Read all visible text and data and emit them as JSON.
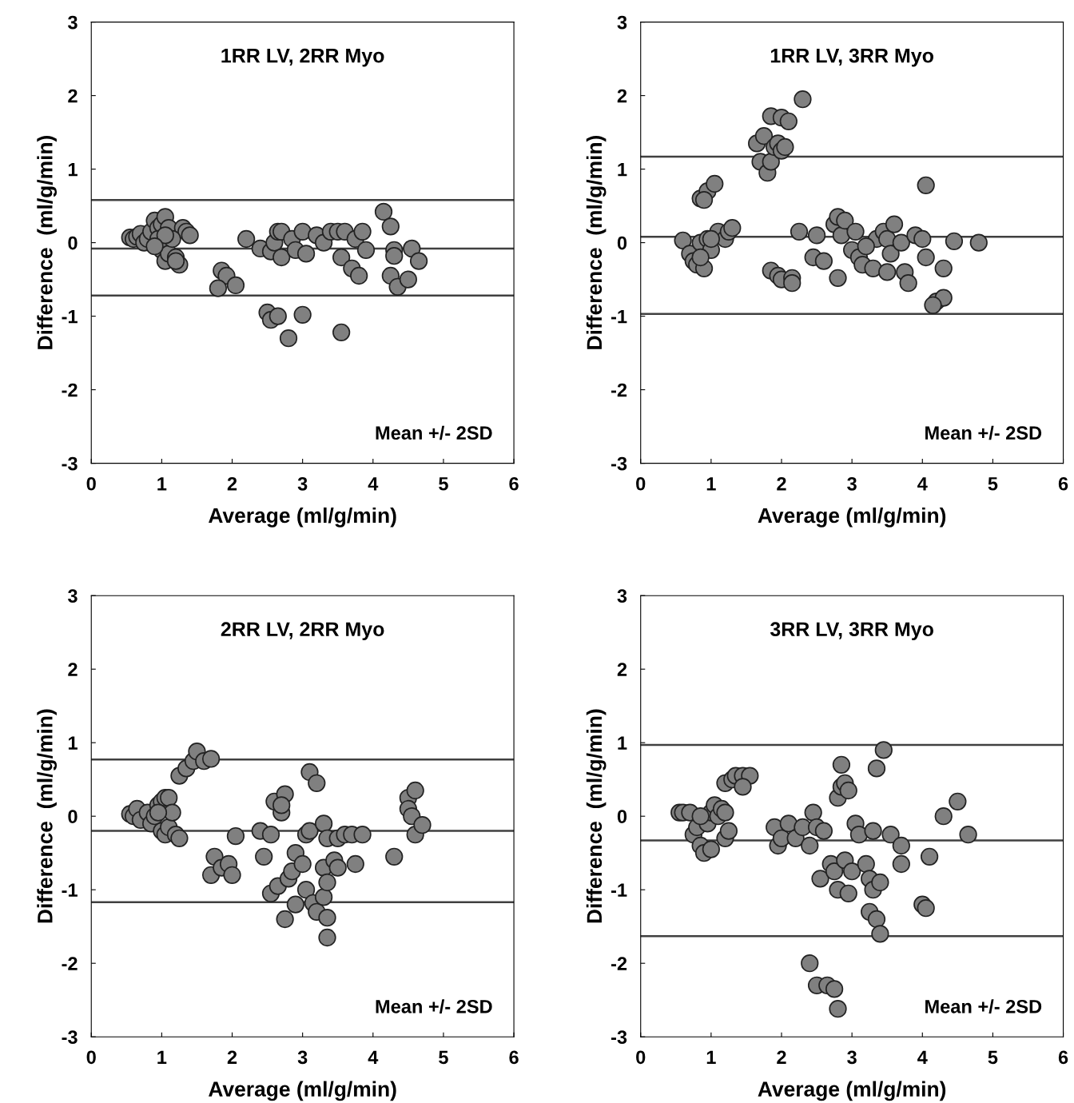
{
  "chart_data": [
    {
      "type": "scatter",
      "title": "1RR LV, 2RR Myo",
      "xlabel": "Average (ml/g/min)",
      "ylabel": "Difference  (ml/g/min)",
      "xlim": [
        0,
        6
      ],
      "xticks": [
        0,
        1,
        2,
        3,
        4,
        5,
        6
      ],
      "ylim": [
        -3,
        3
      ],
      "yticks": [
        -3,
        -2,
        -1,
        0,
        1,
        2,
        3
      ],
      "marker": "circle",
      "grid": false,
      "legend": false,
      "ref_lines": [
        {
          "axis": "y",
          "value": 0.58,
          "color": "#404040"
        },
        {
          "axis": "y",
          "value": -0.08,
          "color": "#404040"
        },
        {
          "axis": "y",
          "value": -0.72,
          "color": "#404040"
        }
      ],
      "annotations": [
        "Mean +/- 2SD"
      ],
      "series": [
        {
          "color": "#808080",
          "x": [
            0.55,
            0.6,
            0.65,
            0.7,
            0.75,
            0.8,
            0.85,
            0.9,
            0.95,
            1.0,
            1.05,
            1.1,
            0.95,
            1.0,
            1.05,
            1.1,
            1.2,
            1.25,
            1.3,
            1.35,
            1.4,
            1.15,
            1.05,
            0.9,
            1.2,
            1.85,
            1.92,
            1.8,
            2.05,
            2.2,
            2.4,
            2.55,
            2.6,
            2.65,
            2.7,
            2.7,
            2.5,
            2.55,
            2.65,
            2.8,
            3.0,
            2.85,
            2.9,
            3.0,
            3.05,
            3.2,
            3.3,
            3.4,
            3.5,
            3.6,
            3.55,
            3.7,
            3.8,
            3.75,
            3.85,
            3.9,
            3.55,
            4.15,
            4.25,
            4.3,
            4.3,
            4.25,
            4.35,
            4.5,
            4.55,
            4.65
          ],
          "values": [
            0.07,
            0.05,
            0.08,
            0.12,
            0.0,
            0.05,
            0.15,
            0.3,
            0.2,
            0.25,
            0.35,
            0.2,
            0.05,
            -0.1,
            -0.25,
            -0.15,
            -0.2,
            -0.3,
            0.2,
            0.15,
            0.1,
            0.05,
            0.1,
            -0.05,
            -0.25,
            -0.38,
            -0.45,
            -0.62,
            -0.58,
            0.05,
            -0.08,
            -0.12,
            0.0,
            0.15,
            0.15,
            -0.2,
            -0.95,
            -1.05,
            -1.0,
            -1.3,
            -0.98,
            0.05,
            -0.1,
            0.15,
            -0.15,
            0.1,
            0.0,
            0.15,
            0.15,
            0.15,
            -0.2,
            -0.35,
            -0.45,
            0.05,
            0.15,
            -0.1,
            -1.22,
            0.42,
            0.22,
            -0.1,
            -0.18,
            -0.45,
            -0.6,
            -0.5,
            -0.08,
            -0.25
          ]
        }
      ]
    },
    {
      "type": "scatter",
      "title": "1RR LV, 3RR Myo",
      "xlabel": "Average (ml/g/min)",
      "ylabel": "Difference  (ml/g/min)",
      "xlim": [
        0,
        6
      ],
      "xticks": [
        0,
        1,
        2,
        3,
        4,
        5,
        6
      ],
      "ylim": [
        -3,
        3
      ],
      "yticks": [
        -3,
        -2,
        -1,
        0,
        1,
        2,
        3
      ],
      "marker": "circle",
      "grid": false,
      "legend": false,
      "ref_lines": [
        {
          "axis": "y",
          "value": 1.17,
          "color": "#404040"
        },
        {
          "axis": "y",
          "value": 0.08,
          "color": "#404040"
        },
        {
          "axis": "y",
          "value": -0.97,
          "color": "#404040"
        }
      ],
      "annotations": [
        "Mean +/- 2SD"
      ],
      "series": [
        {
          "color": "#808080",
          "x": [
            0.6,
            0.7,
            0.75,
            0.8,
            0.85,
            0.9,
            0.95,
            1.0,
            1.1,
            1.2,
            1.25,
            1.3,
            0.85,
            1.0,
            0.85,
            0.95,
            1.05,
            0.9,
            1.65,
            1.75,
            1.7,
            1.8,
            1.85,
            1.9,
            1.95,
            2.0,
            2.05,
            1.85,
            2.0,
            2.1,
            2.3,
            1.85,
            1.95,
            2.0,
            2.15,
            2.15,
            2.25,
            2.5,
            2.45,
            2.6,
            2.75,
            2.8,
            2.85,
            2.9,
            2.8,
            3.0,
            3.05,
            3.1,
            3.15,
            3.3,
            3.35,
            3.45,
            3.5,
            3.55,
            3.5,
            3.7,
            3.75,
            3.8,
            3.9,
            4.0,
            4.05,
            4.3,
            4.2,
            4.3,
            4.15,
            4.05,
            4.45,
            4.8,
            3.2,
            3.6
          ],
          "values": [
            0.03,
            -0.15,
            -0.25,
            -0.3,
            0.0,
            -0.35,
            0.05,
            -0.1,
            0.15,
            0.05,
            0.15,
            0.2,
            -0.2,
            0.05,
            0.6,
            0.7,
            0.8,
            0.58,
            1.35,
            1.45,
            1.1,
            0.95,
            1.1,
            1.3,
            1.35,
            1.25,
            1.3,
            1.72,
            1.7,
            1.65,
            1.95,
            -0.38,
            -0.45,
            -0.5,
            -0.48,
            -0.55,
            0.15,
            0.1,
            -0.2,
            -0.25,
            0.25,
            0.35,
            0.1,
            0.3,
            -0.48,
            -0.1,
            0.15,
            -0.2,
            -0.3,
            -0.35,
            0.05,
            0.15,
            0.05,
            -0.15,
            -0.4,
            0.0,
            -0.4,
            -0.55,
            0.1,
            0.05,
            -0.2,
            -0.35,
            -0.8,
            -0.75,
            -0.85,
            0.78,
            0.02,
            0.0,
            -0.05,
            0.25
          ]
        }
      ]
    },
    {
      "type": "scatter",
      "title": "2RR LV, 2RR Myo",
      "xlabel": "Average (ml/g/min)",
      "ylabel": "Difference  (ml/g/min)",
      "xlim": [
        0,
        6
      ],
      "xticks": [
        0,
        1,
        2,
        3,
        4,
        5,
        6
      ],
      "ylim": [
        -3,
        3
      ],
      "yticks": [
        -3,
        -2,
        -1,
        0,
        1,
        2,
        3
      ],
      "marker": "circle",
      "grid": false,
      "legend": false,
      "ref_lines": [
        {
          "axis": "y",
          "value": 0.77,
          "color": "#404040"
        },
        {
          "axis": "y",
          "value": -0.2,
          "color": "#404040"
        },
        {
          "axis": "y",
          "value": -1.17,
          "color": "#404040"
        }
      ],
      "annotations": [
        "Mean +/- 2SD"
      ],
      "series": [
        {
          "color": "#808080",
          "x": [
            0.55,
            0.6,
            0.65,
            0.7,
            0.8,
            0.85,
            0.9,
            0.95,
            1.0,
            1.05,
            1.1,
            1.0,
            1.05,
            1.1,
            1.15,
            1.2,
            1.25,
            0.95,
            1.25,
            1.35,
            1.45,
            1.5,
            1.6,
            1.7,
            1.75,
            1.7,
            1.85,
            1.95,
            2.0,
            2.05,
            2.4,
            2.55,
            2.6,
            2.7,
            2.75,
            2.7,
            2.45,
            2.55,
            2.65,
            2.75,
            2.8,
            2.85,
            2.9,
            2.9,
            3.0,
            3.05,
            3.1,
            3.1,
            3.2,
            3.05,
            3.15,
            3.2,
            3.3,
            3.35,
            3.35,
            3.3,
            3.35,
            3.3,
            3.35,
            3.45,
            3.5,
            3.5,
            3.6,
            3.7,
            3.75,
            3.85,
            4.3,
            4.5,
            4.5,
            4.55,
            4.6,
            4.6,
            4.7
          ],
          "values": [
            0.03,
            0.0,
            0.1,
            -0.05,
            0.05,
            -0.1,
            0.0,
            0.15,
            0.2,
            0.25,
            0.25,
            -0.2,
            -0.25,
            -0.15,
            0.05,
            -0.25,
            -0.3,
            0.05,
            0.55,
            0.65,
            0.75,
            0.88,
            0.75,
            0.78,
            -0.55,
            -0.8,
            -0.7,
            -0.65,
            -0.8,
            -0.27,
            -0.2,
            -0.25,
            0.2,
            0.05,
            0.3,
            0.15,
            -0.55,
            -1.05,
            -0.95,
            -1.4,
            -0.85,
            -0.75,
            -0.5,
            -1.2,
            -0.65,
            -0.25,
            -0.2,
            0.6,
            0.45,
            -1.0,
            -1.18,
            -1.3,
            -1.1,
            -1.38,
            -1.65,
            -0.7,
            -0.9,
            -0.1,
            -0.3,
            -0.6,
            -0.7,
            -0.3,
            -0.25,
            -0.25,
            -0.65,
            -0.25,
            -0.55,
            0.25,
            0.1,
            0.0,
            0.35,
            -0.25,
            -0.12
          ]
        }
      ]
    },
    {
      "type": "scatter",
      "title": "3RR LV, 3RR Myo",
      "xlabel": "Average (ml/g/min)",
      "ylabel": "Difference  (ml/g/min)",
      "xlim": [
        0,
        6
      ],
      "xticks": [
        0,
        1,
        2,
        3,
        4,
        5,
        6
      ],
      "ylim": [
        -3,
        3
      ],
      "yticks": [
        -3,
        -2,
        -1,
        0,
        1,
        2,
        3
      ],
      "marker": "circle",
      "grid": false,
      "legend": false,
      "ref_lines": [
        {
          "axis": "y",
          "value": 0.97,
          "color": "#404040"
        },
        {
          "axis": "y",
          "value": -0.33,
          "color": "#404040"
        },
        {
          "axis": "y",
          "value": -1.63,
          "color": "#404040"
        }
      ],
      "annotations": [
        "Mean +/- 2SD"
      ],
      "series": [
        {
          "color": "#808080",
          "x": [
            0.55,
            0.6,
            0.7,
            0.75,
            0.8,
            0.85,
            0.9,
            0.95,
            1.0,
            1.05,
            1.1,
            1.15,
            1.2,
            1.25,
            1.0,
            1.2,
            0.85,
            1.2,
            1.3,
            1.35,
            1.45,
            1.55,
            1.45,
            1.9,
            1.95,
            2.0,
            2.1,
            2.2,
            2.3,
            2.4,
            2.45,
            2.5,
            2.6,
            2.55,
            2.7,
            2.75,
            2.8,
            2.85,
            2.85,
            2.9,
            2.95,
            2.8,
            2.9,
            2.95,
            3.0,
            3.05,
            3.1,
            3.2,
            3.25,
            3.3,
            3.25,
            3.35,
            3.4,
            3.3,
            3.35,
            3.45,
            3.4,
            3.55,
            3.7,
            3.7,
            4.0,
            4.05,
            4.1,
            4.3,
            4.5,
            4.65,
            2.4,
            2.5,
            2.65,
            2.75,
            2.8
          ],
          "values": [
            0.05,
            0.05,
            0.05,
            -0.25,
            -0.15,
            -0.4,
            -0.5,
            -0.1,
            0.05,
            0.15,
            0.0,
            0.1,
            -0.3,
            -0.2,
            -0.45,
            0.05,
            0.0,
            0.45,
            0.5,
            0.55,
            0.55,
            0.55,
            0.4,
            -0.15,
            -0.4,
            -0.3,
            -0.1,
            -0.3,
            -0.15,
            -0.4,
            0.05,
            -0.15,
            -0.2,
            -0.85,
            -0.65,
            -0.75,
            0.25,
            0.4,
            0.7,
            0.45,
            0.35,
            -1.0,
            -0.6,
            -1.05,
            -0.75,
            -0.1,
            -0.25,
            -0.65,
            -0.85,
            -1.0,
            -1.3,
            -1.4,
            -1.6,
            -0.2,
            0.65,
            0.9,
            -0.9,
            -0.25,
            -0.4,
            -0.65,
            -1.2,
            -1.25,
            -0.55,
            0.0,
            0.2,
            -0.25,
            -2.0,
            -2.3,
            -2.3,
            -2.35,
            -2.62
          ]
        }
      ]
    }
  ]
}
